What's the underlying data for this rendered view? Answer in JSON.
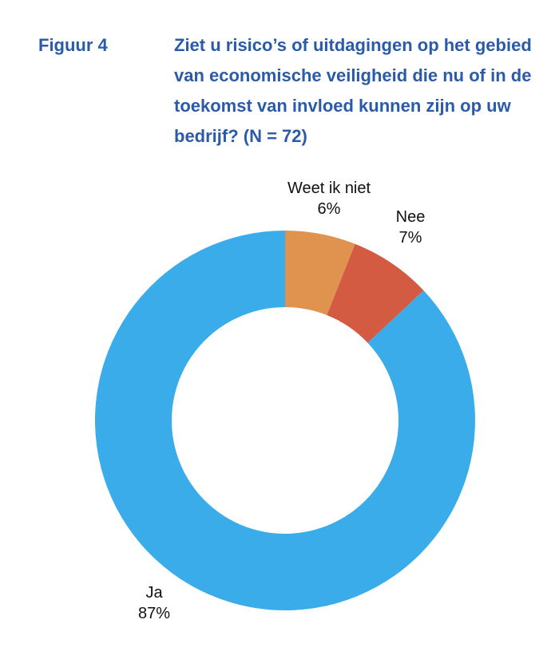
{
  "figure": {
    "label": "Figuur 4",
    "title": "Ziet u risico’s of uitdagingen op het gebied van economische veiligheid die nu of in de toekomst van invloed kunnen zijn op uw bedrijf? (N = 72)",
    "title_color": "#2b5ba8"
  },
  "chart_data": {
    "type": "pie",
    "donut": true,
    "start": "top",
    "direction": "clockwise",
    "slices": [
      {
        "label": "Weet ik niet",
        "value": 6,
        "value_label": "6%",
        "color": "#e0934f"
      },
      {
        "label": "Nee",
        "value": 7,
        "value_label": "7%",
        "color": "#d35b42"
      },
      {
        "label": "Ja",
        "value": 87,
        "value_label": "87%",
        "color": "#3aacea"
      }
    ]
  }
}
